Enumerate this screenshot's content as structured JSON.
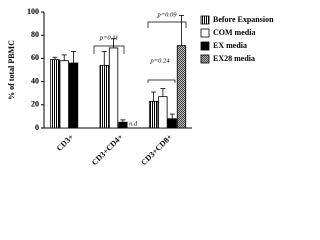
{
  "chart_data": {
    "type": "bar",
    "y_label": "% of total PBMC",
    "categories": [
      "CD3+",
      "CD3+CD4+",
      "CD3+CD8+"
    ],
    "series": [
      {
        "name": "Before Expansion",
        "color": "#ffffff",
        "pattern": "vertical-stripes",
        "values": [
          59,
          54,
          23
        ],
        "errors": [
          2,
          12,
          8
        ]
      },
      {
        "name": "COM media",
        "color": "#ffffff",
        "pattern": "none",
        "values": [
          58,
          69,
          27
        ],
        "errors": [
          5,
          8,
          7
        ]
      },
      {
        "name": "EX media",
        "color": "#000000",
        "pattern": "none",
        "values": [
          56,
          5,
          8
        ],
        "errors": [
          10,
          2,
          4
        ]
      },
      {
        "name": "EX28 media",
        "color": "#ffffff",
        "pattern": "checker",
        "values": [
          null,
          null,
          71
        ],
        "errors": [
          null,
          null,
          26
        ]
      }
    ],
    "annotations": [
      "p=0.11",
      "n.d",
      "p=0.24",
      "p=0.09"
    ],
    "ylim": [
      0,
      100
    ],
    "yticks": [
      0,
      20,
      40,
      60,
      80,
      100
    ]
  }
}
